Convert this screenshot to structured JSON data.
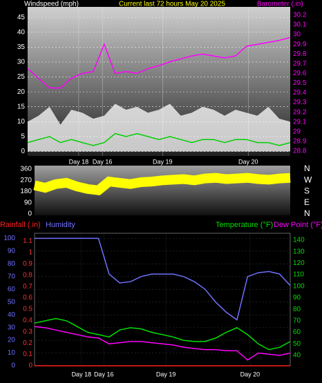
{
  "chart_data": [
    {
      "type": "line",
      "title": "Current last 72 hours May 20 2025",
      "y_label": "Windspeed (mph)",
      "y2_label": "Barometer (.in)",
      "x": [
        0,
        3,
        6,
        9,
        12,
        15,
        18,
        21,
        24,
        27,
        30,
        33,
        36,
        39,
        42,
        45,
        48,
        51,
        54,
        57,
        60,
        63,
        66,
        69,
        72
      ],
      "xlim": [
        0,
        72
      ],
      "xticks": [
        {
          "value": 14,
          "label": "Day 18"
        },
        {
          "value": 20.5,
          "label": "Day 16"
        },
        {
          "value": 37,
          "label": "Day 19"
        },
        {
          "value": 60.5,
          "label": "Day 20"
        }
      ],
      "ylim": [
        -1.5,
        48.5
      ],
      "yticks": [
        0,
        5,
        10,
        15,
        20,
        25,
        30,
        35,
        40,
        45
      ],
      "ytick_color": "#ffffff",
      "y2lim": [
        28.75,
        30.285
      ],
      "y2ticks": [
        28.8,
        28.9,
        29,
        29.1,
        29.2,
        29.3,
        29.4,
        29.5,
        29.6,
        29.7,
        29.8,
        29.9,
        30,
        30.1,
        30.2
      ],
      "y2tick_color": "#ff00ff",
      "grid": true,
      "series": [
        {
          "color": "#ffffff",
          "fill": true,
          "values": [
            10,
            12,
            15,
            9,
            14,
            13,
            11,
            12,
            16,
            14,
            15,
            13,
            14,
            16,
            12,
            13,
            15,
            14,
            12,
            14,
            13,
            12,
            15,
            11,
            10
          ]
        },
        {
          "color": "#00d000",
          "fill": false,
          "values": [
            3,
            4,
            5,
            3,
            4,
            3,
            2,
            3,
            6,
            5,
            6,
            5,
            4,
            5,
            4,
            3,
            4,
            4,
            3,
            4,
            4,
            3,
            3,
            2,
            3
          ]
        },
        {
          "color": "#ff00ff",
          "fill": false,
          "axis": "y2",
          "values": [
            29.65,
            29.55,
            29.45,
            29.45,
            29.55,
            29.6,
            29.62,
            29.9,
            29.6,
            29.62,
            29.6,
            29.65,
            29.68,
            29.72,
            29.75,
            29.78,
            29.8,
            29.78,
            29.76,
            29.78,
            29.88,
            29.9,
            29.92,
            29.94,
            29.97
          ]
        }
      ]
    },
    {
      "type": "line",
      "x": [
        0,
        3,
        6,
        9,
        12,
        15,
        18,
        21,
        24,
        27,
        30,
        33,
        36,
        39,
        42,
        45,
        48,
        51,
        54,
        57,
        60,
        63,
        66,
        69,
        72
      ],
      "xlim": [
        0,
        72
      ],
      "ylim": [
        -11,
        388
      ],
      "yticks": [
        0,
        90,
        180,
        270,
        360
      ],
      "ytick_color": "#ffffff",
      "direction_labels": [
        "N",
        "W",
        "S",
        "E",
        "N"
      ],
      "grid": false,
      "series": [
        {
          "color": "#ffff00",
          "fill": false,
          "width": 14,
          "values": [
            230,
            210,
            240,
            250,
            220,
            200,
            190,
            260,
            250,
            240,
            255,
            260,
            270,
            275,
            280,
            270,
            285,
            290,
            280,
            285,
            290,
            280,
            275,
            285,
            290
          ]
        }
      ]
    },
    {
      "type": "line",
      "x": [
        0,
        3,
        6,
        9,
        12,
        15,
        18,
        21,
        24,
        27,
        30,
        33,
        36,
        39,
        42,
        45,
        48,
        51,
        54,
        57,
        60,
        63,
        66,
        69,
        72
      ],
      "xlim": [
        0,
        72
      ],
      "xticks": [
        {
          "value": 13.2,
          "label": "Day 18"
        },
        {
          "value": 19.5,
          "label": "Day 16"
        },
        {
          "value": 37,
          "label": "Day 19"
        },
        {
          "value": 60.7,
          "label": "Day 20"
        }
      ],
      "ylim": [
        0,
        104
      ],
      "yticks": [
        0,
        10,
        20,
        30,
        40,
        50,
        60,
        70,
        80,
        90,
        100
      ],
      "ytick_color": "#7070ff",
      "y2lim": [
        31,
        146
      ],
      "y2ticks": [
        40,
        50,
        60,
        70,
        80,
        90,
        100,
        110,
        120,
        130,
        140
      ],
      "y2tick_color": "#00e000",
      "y3lim": [
        0,
        1.17
      ],
      "y3ticks": [
        0,
        0.1,
        0.2,
        0.3,
        0.4,
        0.5,
        0.6,
        0.7,
        0.8,
        0.9,
        1,
        1.1
      ],
      "y3tick_color": "#ff3030",
      "grid": true,
      "series": [
        {
          "name": "Rainfall (.in)",
          "color": "#ff2020",
          "fill": false,
          "axis": "y3",
          "values": [
            0,
            0,
            0,
            0,
            0,
            0,
            0,
            0,
            0,
            0,
            0,
            0,
            0,
            0,
            0,
            0,
            0,
            0,
            0,
            0,
            0,
            0,
            0,
            0,
            0
          ]
        },
        {
          "name": "Humidity",
          "color": "#7070ff",
          "fill": false,
          "values": [
            100,
            100,
            100,
            100,
            100,
            100,
            100,
            72,
            65,
            66,
            70,
            72,
            72,
            72,
            70,
            66,
            60,
            50,
            42,
            36,
            70,
            73,
            74,
            72,
            63
          ]
        },
        {
          "name": "Temperature (°F)",
          "color": "#00e000",
          "fill": false,
          "axis": "y2",
          "values": [
            68,
            70,
            72,
            70,
            65,
            60,
            58,
            56,
            62,
            64,
            63,
            60,
            58,
            56,
            53,
            52,
            52,
            55,
            60,
            64,
            58,
            50,
            45,
            47,
            52
          ]
        },
        {
          "name": "Dew Point (°F)",
          "color": "#ff00ff",
          "fill": false,
          "axis": "y2",
          "values": [
            65,
            64,
            62,
            60,
            58,
            56,
            55,
            50,
            51,
            52,
            52,
            51,
            50,
            49,
            47,
            46,
            45,
            45,
            44,
            44,
            36,
            42,
            41,
            40,
            42
          ]
        }
      ]
    }
  ]
}
